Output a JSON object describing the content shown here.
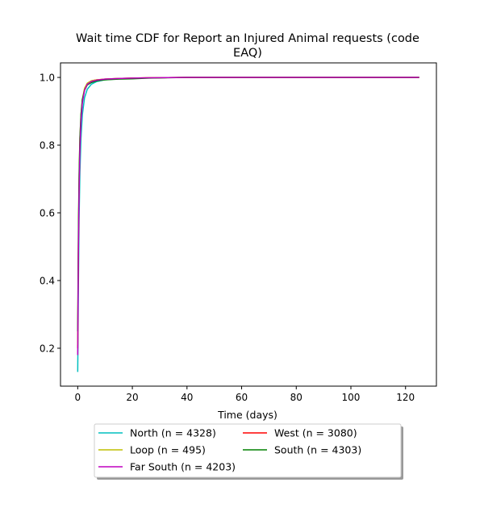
{
  "chart_data": {
    "type": "line",
    "title_line1": "Wait time CDF for Report an Injured Animal  requests (code",
    "title_line2": "EAQ)",
    "xlabel": "Time (days)",
    "ylabel": "",
    "xlim": [
      -6.3,
      131.3
    ],
    "ylim": [
      0.088,
      1.043
    ],
    "xticks": [
      0,
      20,
      40,
      60,
      80,
      100,
      120
    ],
    "xtick_labels": [
      "0",
      "20",
      "40",
      "60",
      "80",
      "100",
      "120"
    ],
    "yticks": [
      0.2,
      0.4,
      0.6,
      0.8,
      1.0
    ],
    "ytick_labels": [
      "0.2",
      "0.4",
      "0.6",
      "0.8",
      "1.0"
    ],
    "grid": false,
    "legend_placement": "below-center",
    "legend_columns": 2,
    "series": [
      {
        "name": "North (n = 4328)",
        "color": "#00bfbf",
        "points": [
          [
            0,
            0.13
          ],
          [
            0.1,
            0.22
          ],
          [
            0.25,
            0.38
          ],
          [
            0.5,
            0.58
          ],
          [
            0.8,
            0.72
          ],
          [
            1.2,
            0.82
          ],
          [
            1.7,
            0.89
          ],
          [
            2.5,
            0.94
          ],
          [
            3.5,
            0.965
          ],
          [
            5,
            0.98
          ],
          [
            7,
            0.988
          ],
          [
            10,
            0.993
          ],
          [
            15,
            0.996
          ],
          [
            20,
            0.997
          ],
          [
            26,
            0.999
          ],
          [
            40,
            1.0
          ],
          [
            125,
            1.0
          ]
        ]
      },
      {
        "name": "West (n = 3080)",
        "color": "#ff0000",
        "points": [
          [
            0,
            0.2
          ],
          [
            0.1,
            0.32
          ],
          [
            0.25,
            0.5
          ],
          [
            0.5,
            0.68
          ],
          [
            0.8,
            0.8
          ],
          [
            1.2,
            0.88
          ],
          [
            1.7,
            0.93
          ],
          [
            2.5,
            0.965
          ],
          [
            3.5,
            0.982
          ],
          [
            5,
            0.99
          ],
          [
            7,
            0.993
          ],
          [
            10,
            0.995
          ],
          [
            15,
            0.997
          ],
          [
            20,
            0.998
          ],
          [
            26,
            0.999
          ],
          [
            40,
            1.0
          ],
          [
            125,
            1.0
          ]
        ]
      },
      {
        "name": "Loop (n = 495)",
        "color": "#bfbf00",
        "points": [
          [
            0,
            0.21
          ],
          [
            0.1,
            0.33
          ],
          [
            0.25,
            0.52
          ],
          [
            0.5,
            0.7
          ],
          [
            0.8,
            0.82
          ],
          [
            1.2,
            0.89
          ],
          [
            1.7,
            0.935
          ],
          [
            2.5,
            0.968
          ],
          [
            3.5,
            0.983
          ],
          [
            5,
            0.99
          ],
          [
            7,
            0.993
          ],
          [
            10,
            0.995
          ],
          [
            15,
            0.997
          ],
          [
            26,
            0.999
          ],
          [
            40,
            1.0
          ],
          [
            125,
            1.0
          ]
        ]
      },
      {
        "name": "South (n = 4303)",
        "color": "#008000",
        "points": [
          [
            0,
            0.25
          ],
          [
            0.1,
            0.36
          ],
          [
            0.25,
            0.54
          ],
          [
            0.5,
            0.71
          ],
          [
            0.8,
            0.82
          ],
          [
            1.2,
            0.89
          ],
          [
            1.7,
            0.935
          ],
          [
            2.5,
            0.962
          ],
          [
            3.5,
            0.978
          ],
          [
            5,
            0.985
          ],
          [
            7,
            0.99
          ],
          [
            10,
            0.993
          ],
          [
            15,
            0.995
          ],
          [
            20,
            0.996
          ],
          [
            26,
            0.998
          ],
          [
            40,
            1.0
          ],
          [
            125,
            1.0
          ]
        ]
      },
      {
        "name": "Far South (n = 4203)",
        "color": "#bf00bf",
        "points": [
          [
            0,
            0.18
          ],
          [
            0.1,
            0.3
          ],
          [
            0.25,
            0.48
          ],
          [
            0.5,
            0.66
          ],
          [
            0.8,
            0.79
          ],
          [
            1.2,
            0.87
          ],
          [
            1.7,
            0.925
          ],
          [
            2.5,
            0.962
          ],
          [
            3.5,
            0.98
          ],
          [
            5,
            0.988
          ],
          [
            7,
            0.992
          ],
          [
            10,
            0.995
          ],
          [
            15,
            0.997
          ],
          [
            20,
            0.998
          ],
          [
            26,
            0.999
          ],
          [
            40,
            1.0
          ],
          [
            125,
            1.0
          ]
        ]
      }
    ]
  }
}
